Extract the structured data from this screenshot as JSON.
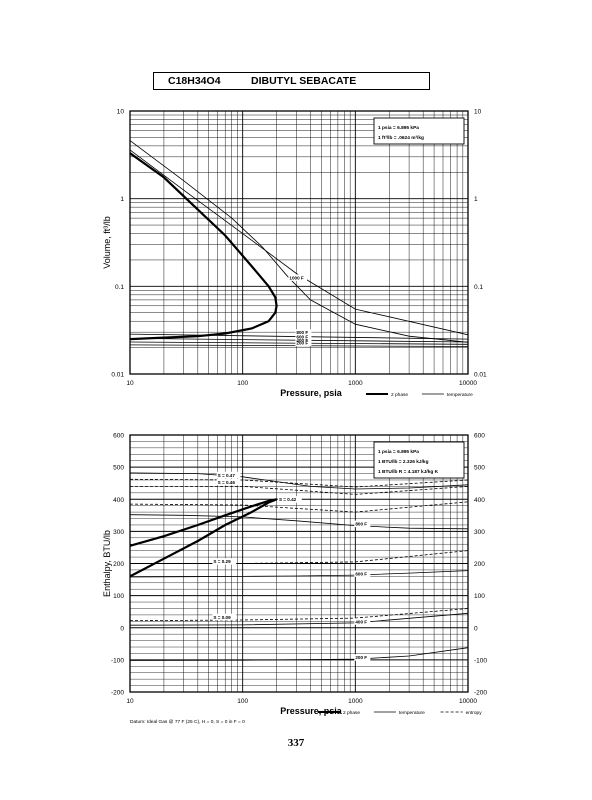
{
  "header": {
    "formula": "C18H34O4",
    "name": "DIBUTYL SEBACATE"
  },
  "page_number": "337",
  "footnote": "Datum: Ideal Gas @ 77 F (25 C), H = 0, S = 0 in F = 0",
  "chart_data": [
    {
      "type": "line",
      "scale": {
        "x": "log",
        "y": "log"
      },
      "xlim": [
        10,
        10000
      ],
      "ylim": [
        0.01,
        10
      ],
      "xlabel": "Pressure,  psia",
      "ylabel": "Volume,  ft^3/lb",
      "x_ticks": [
        "10",
        "100",
        "1000",
        "10000"
      ],
      "y_ticks": [
        "0.01",
        "0.1",
        "1",
        "10"
      ],
      "grid": true,
      "legend": [
        {
          "label": "2 phase",
          "style": "thick"
        },
        {
          "label": "temperature",
          "style": "thin"
        }
      ],
      "conversion_box": [
        "1 psia  =  6.895 kPa",
        "1 ft^3/lb  =  .0624 m^3/kg"
      ],
      "series": [
        {
          "style": "thick",
          "x": [
            10,
            20,
            40,
            70,
            120,
            170,
            195,
            200,
            195,
            170,
            120,
            70,
            40,
            20,
            10
          ],
          "y": [
            3.3,
            1.75,
            0.75,
            0.38,
            0.17,
            0.1,
            0.075,
            0.06,
            0.05,
            0.04,
            0.033,
            0.029,
            0.027,
            0.026,
            0.025
          ]
        },
        {
          "style": "thin",
          "label": "1000 F",
          "x": [
            10,
            30,
            80,
            150,
            250,
            400,
            1000,
            3000,
            10000
          ],
          "y": [
            4.6,
            1.6,
            0.6,
            0.28,
            0.13,
            0.07,
            0.037,
            0.027,
            0.023
          ]
        },
        {
          "style": "thin",
          "x": [
            10,
            30,
            100,
            300,
            1000,
            10000
          ],
          "y": [
            3.6,
            1.25,
            0.4,
            0.14,
            0.055,
            0.028
          ]
        },
        {
          "style": "thin",
          "label": "800 F",
          "x": [
            10,
            10000
          ],
          "y": [
            0.0285,
            0.025
          ]
        },
        {
          "style": "thin",
          "label": "600 F",
          "x": [
            10,
            10000
          ],
          "y": [
            0.0255,
            0.0232
          ]
        },
        {
          "style": "thin",
          "label": "400 F",
          "x": [
            10,
            10000
          ],
          "y": [
            0.0232,
            0.0218
          ]
        },
        {
          "style": "thin",
          "label": "200 F",
          "x": [
            10,
            10000
          ],
          "y": [
            0.0215,
            0.0206
          ]
        }
      ]
    },
    {
      "type": "line",
      "scale": {
        "x": "log",
        "y": "linear"
      },
      "xlim": [
        10,
        10000
      ],
      "ylim": [
        -200,
        600
      ],
      "xlabel": "Pressure,  psia",
      "ylabel": "Enthalpy,  BTU/lb",
      "x_ticks": [
        "10",
        "100",
        "1000",
        "10000"
      ],
      "y_ticks": [
        "-200",
        "-100",
        "0",
        "100",
        "200",
        "300",
        "400",
        "500",
        "600"
      ],
      "grid": true,
      "legend": [
        {
          "label": "2 phase",
          "style": "thick"
        },
        {
          "label": "temperature",
          "style": "thin"
        },
        {
          "label": "entropy",
          "style": "dashed"
        }
      ],
      "conversion_box": [
        "1 psia  =  6.895 kPa",
        "1 BTU/lb  =  2.326 kJ/kg",
        "1 BTU/lb R  =  4.187 kJ/kg K"
      ],
      "series": [
        {
          "style": "thick",
          "x": [
            10,
            20,
            40,
            70,
            120,
            170,
            200,
            170,
            120,
            70,
            40,
            20,
            10
          ],
          "y": [
            255,
            285,
            320,
            350,
            378,
            395,
            400,
            390,
            360,
            320,
            270,
            215,
            160
          ]
        },
        {
          "style": "thin",
          "label": "800 F",
          "x": [
            10,
            30,
            100,
            300,
            1000,
            3000,
            10000
          ],
          "y": [
            352,
            350,
            345,
            333,
            318,
            310,
            308
          ]
        },
        {
          "style": "thin",
          "label": "600 F",
          "x": [
            10,
            30,
            100,
            300,
            1000,
            3000,
            10000
          ],
          "y": [
            158,
            159,
            160,
            161,
            164,
            170,
            178
          ]
        },
        {
          "style": "thin",
          "label": "400 F",
          "x": [
            10,
            100,
            1000,
            10000
          ],
          "y": [
            8,
            9,
            15,
            45
          ]
        },
        {
          "style": "thin",
          "label": "200 F",
          "x": [
            10,
            100,
            1000,
            3000,
            10000
          ],
          "y": [
            -102,
            -101,
            -98,
            -88,
            -62
          ]
        },
        {
          "style": "thin",
          "x": [
            10,
            40,
            100,
            200,
            400,
            1000,
            3000,
            10000
          ],
          "y": [
            482,
            480,
            470,
            455,
            440,
            432,
            435,
            445
          ]
        },
        {
          "style": "dashed",
          "label": "S = 0.47",
          "x": [
            10,
            100,
            1000,
            10000
          ],
          "y": [
            462,
            460,
            438,
            460
          ]
        },
        {
          "style": "dashed",
          "label": "S = 0.46",
          "x": [
            10,
            100,
            1000,
            10000
          ],
          "y": [
            440,
            440,
            415,
            440
          ]
        },
        {
          "style": "dashed",
          "label": "S = 0.42",
          "x": [
            10,
            100,
            1000,
            10000
          ],
          "y": [
            385,
            382,
            360,
            392
          ]
        },
        {
          "style": "dashed",
          "label": "S = 0.29",
          "x": [
            10,
            100,
            1000,
            10000
          ],
          "y": [
            200,
            200,
            205,
            240
          ]
        },
        {
          "style": "dashed",
          "label": "S = 0.09",
          "x": [
            10,
            100,
            1000,
            10000
          ],
          "y": [
            22,
            24,
            30,
            60
          ]
        }
      ]
    }
  ]
}
